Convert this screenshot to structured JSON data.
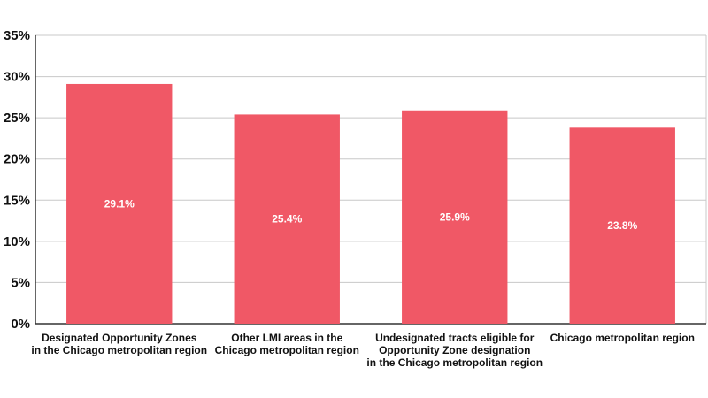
{
  "chart_data": {
    "type": "bar",
    "categories": [
      [
        "Designated Opportunity Zones",
        "in the Chicago metropolitan region"
      ],
      [
        "Other LMI areas in the",
        "Chicago metropolitan region"
      ],
      [
        "Undesignated tracts eligible for",
        "Opportunity Zone designation",
        "in the Chicago metropolitan region"
      ],
      [
        "Chicago metropolitan region"
      ]
    ],
    "values": [
      29.1,
      25.4,
      25.9,
      23.8
    ],
    "data_labels": [
      "29.1%",
      "25.4%",
      "25.9%",
      "23.8%"
    ],
    "ylim": [
      0,
      35
    ],
    "yticks": [
      0,
      5,
      10,
      15,
      20,
      25,
      30,
      35
    ],
    "ytick_labels": [
      "0%",
      "5%",
      "10%",
      "15%",
      "20%",
      "25%",
      "30%",
      "35%"
    ],
    "grid": true,
    "title": "",
    "xlabel": "",
    "ylabel": "",
    "colors": {
      "bar": "#f05866",
      "grid": "#c8c8c8",
      "axis": "#333333",
      "data_label": "#ffffff"
    }
  }
}
